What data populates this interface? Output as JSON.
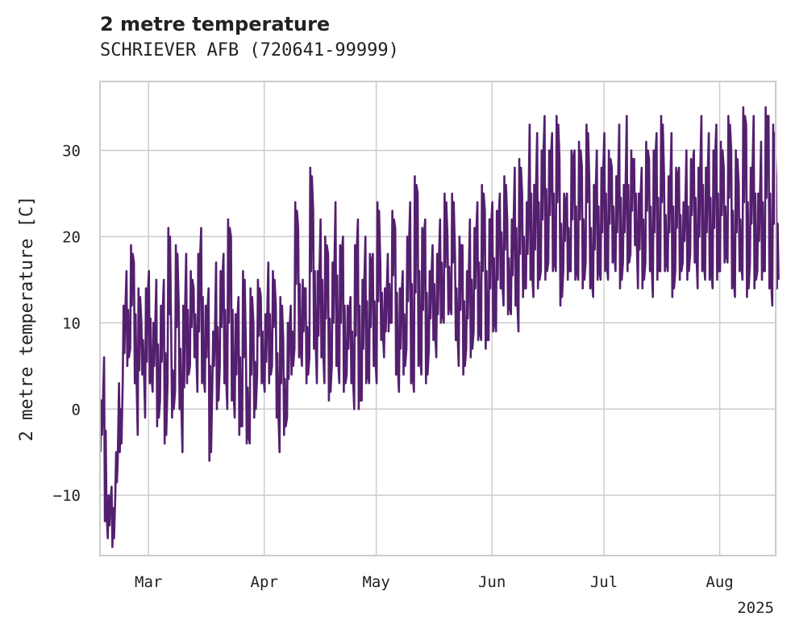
{
  "header": {
    "title": "2 metre temperature",
    "subtitle": "SCHRIEVER AFB (720641-99999)"
  },
  "chart_data": {
    "type": "line",
    "title": "2 metre temperature",
    "subtitle": "SCHRIEVER AFB (720641-99999)",
    "ylabel": "2 metre temperature [C]",
    "xlabel": "",
    "x_range": [
      "2025-02-16",
      "2025-08-16"
    ],
    "ylim": [
      -17,
      38
    ],
    "yticks": [
      -10,
      0,
      10,
      20,
      30
    ],
    "ytick_labels": [
      "−10",
      "0",
      "10",
      "20",
      "30"
    ],
    "xticks": [
      "2025-03-01",
      "2025-04-01",
      "2025-05-01",
      "2025-06-01",
      "2025-07-01",
      "2025-08-01"
    ],
    "xtick_labels": [
      "Mar",
      "Apr",
      "May",
      "Jun",
      "Jul",
      "Aug"
    ],
    "x_offset_label": "2025",
    "grid": true,
    "series": [
      {
        "color": "#541f6e",
        "sampling": "3-hourly readings shown as daily min/max envelope",
        "x": [
          "2025-02-16",
          "2025-02-17",
          "2025-02-18",
          "2025-02-19",
          "2025-02-20",
          "2025-02-21",
          "2025-02-22",
          "2025-02-23",
          "2025-02-24",
          "2025-02-25",
          "2025-02-26",
          "2025-02-27",
          "2025-02-28",
          "2025-03-01",
          "2025-03-02",
          "2025-03-03",
          "2025-03-04",
          "2025-03-05",
          "2025-03-06",
          "2025-03-07",
          "2025-03-08",
          "2025-03-09",
          "2025-03-10",
          "2025-03-11",
          "2025-03-12",
          "2025-03-13",
          "2025-03-14",
          "2025-03-15",
          "2025-03-16",
          "2025-03-17",
          "2025-03-18",
          "2025-03-19",
          "2025-03-20",
          "2025-03-21",
          "2025-03-22",
          "2025-03-23",
          "2025-03-24",
          "2025-03-25",
          "2025-03-26",
          "2025-03-27",
          "2025-03-28",
          "2025-03-29",
          "2025-03-30",
          "2025-03-31",
          "2025-04-01",
          "2025-04-02",
          "2025-04-03",
          "2025-04-04",
          "2025-04-05",
          "2025-04-06",
          "2025-04-07",
          "2025-04-08",
          "2025-04-09",
          "2025-04-10",
          "2025-04-11",
          "2025-04-12",
          "2025-04-13",
          "2025-04-14",
          "2025-04-15",
          "2025-04-16",
          "2025-04-17",
          "2025-04-18",
          "2025-04-19",
          "2025-04-20",
          "2025-04-21",
          "2025-04-22",
          "2025-04-23",
          "2025-04-24",
          "2025-04-25",
          "2025-04-26",
          "2025-04-27",
          "2025-04-28",
          "2025-04-29",
          "2025-04-30",
          "2025-05-01",
          "2025-05-02",
          "2025-05-03",
          "2025-05-04",
          "2025-05-05",
          "2025-05-06",
          "2025-05-07",
          "2025-05-08",
          "2025-05-09",
          "2025-05-10",
          "2025-05-11",
          "2025-05-12",
          "2025-05-13",
          "2025-05-14",
          "2025-05-15",
          "2025-05-16",
          "2025-05-17",
          "2025-05-18",
          "2025-05-19",
          "2025-05-20",
          "2025-05-21",
          "2025-05-22",
          "2025-05-23",
          "2025-05-24",
          "2025-05-25",
          "2025-05-26",
          "2025-05-27",
          "2025-05-28",
          "2025-05-29",
          "2025-05-30",
          "2025-05-31",
          "2025-06-01",
          "2025-06-02",
          "2025-06-03",
          "2025-06-04",
          "2025-06-05",
          "2025-06-06",
          "2025-06-07",
          "2025-06-08",
          "2025-06-09",
          "2025-06-10",
          "2025-06-11",
          "2025-06-12",
          "2025-06-13",
          "2025-06-14",
          "2025-06-15",
          "2025-06-16",
          "2025-06-17",
          "2025-06-18",
          "2025-06-19",
          "2025-06-20",
          "2025-06-21",
          "2025-06-22",
          "2025-06-23",
          "2025-06-24",
          "2025-06-25",
          "2025-06-26",
          "2025-06-27",
          "2025-06-28",
          "2025-06-29",
          "2025-06-30",
          "2025-07-01",
          "2025-07-02",
          "2025-07-03",
          "2025-07-04",
          "2025-07-05",
          "2025-07-06",
          "2025-07-07",
          "2025-07-08",
          "2025-07-09",
          "2025-07-10",
          "2025-07-11",
          "2025-07-12",
          "2025-07-13",
          "2025-07-14",
          "2025-07-15",
          "2025-07-16",
          "2025-07-17",
          "2025-07-18",
          "2025-07-19",
          "2025-07-20",
          "2025-07-21",
          "2025-07-22",
          "2025-07-23",
          "2025-07-24",
          "2025-07-25",
          "2025-07-26",
          "2025-07-27",
          "2025-07-28",
          "2025-07-29",
          "2025-07-30",
          "2025-07-31",
          "2025-08-01",
          "2025-08-02",
          "2025-08-03",
          "2025-08-04",
          "2025-08-05",
          "2025-08-06",
          "2025-08-07",
          "2025-08-08",
          "2025-08-09",
          "2025-08-10",
          "2025-08-11",
          "2025-08-12",
          "2025-08-13",
          "2025-08-14",
          "2025-08-15",
          "2025-08-16"
        ],
        "min": [
          -5,
          -13,
          -15,
          -16,
          -10,
          -5,
          3,
          5,
          7,
          3,
          -3,
          4,
          -1,
          3,
          2,
          -2,
          1,
          -4,
          3,
          -1,
          2,
          0,
          -5,
          3,
          5,
          6,
          2,
          3,
          2,
          -6,
          3,
          0,
          5,
          3,
          0,
          1,
          -1,
          -3,
          -2,
          -4,
          -4,
          -1,
          4,
          3,
          2,
          3,
          5,
          -1,
          -5,
          -3,
          -1,
          4,
          7,
          6,
          5,
          3,
          6,
          7,
          3,
          6,
          3,
          1,
          5,
          5,
          3,
          2,
          4,
          3,
          0,
          0,
          1,
          3,
          3,
          5,
          3,
          8,
          6,
          9,
          10,
          4,
          2,
          4,
          7,
          3,
          2,
          5,
          4,
          3,
          7,
          8,
          6,
          10,
          10,
          11,
          11,
          8,
          5,
          4,
          7,
          6,
          9,
          8,
          8,
          7,
          8,
          9,
          9,
          14,
          12,
          11,
          11,
          12,
          9,
          13,
          14,
          15,
          13,
          14,
          16,
          15,
          17,
          16,
          16,
          12,
          16,
          15,
          16,
          15,
          15,
          14,
          17,
          14,
          13,
          15,
          15,
          16,
          15,
          17,
          16,
          14,
          17,
          16,
          18,
          19,
          14,
          14,
          17,
          16,
          13,
          15,
          16,
          16,
          16,
          13,
          16,
          15,
          17,
          15,
          18,
          17,
          14,
          16,
          15,
          15,
          14,
          15,
          16,
          17,
          17,
          14,
          13,
          16,
          15,
          13,
          17,
          14,
          16,
          15,
          16,
          14,
          12,
          14,
          15,
          14,
          14,
          13,
          14,
          18,
          17
        ],
        "max": [
          1,
          6,
          -10,
          -9,
          -5,
          3,
          12,
          16,
          19,
          17,
          14,
          10,
          14,
          16,
          10,
          15,
          12,
          15,
          21,
          8,
          19,
          12,
          12,
          18,
          16,
          14,
          18,
          21,
          12,
          14,
          9,
          17,
          16,
          18,
          22,
          20,
          11,
          13,
          16,
          7,
          14,
          10,
          15,
          13,
          11,
          17,
          16,
          12,
          13,
          8,
          10,
          12,
          24,
          21,
          15,
          14,
          28,
          23,
          16,
          22,
          20,
          18,
          17,
          24,
          19,
          20,
          12,
          13,
          19,
          22,
          15,
          20,
          18,
          18,
          24,
          17,
          14,
          18,
          23,
          21,
          14,
          16,
          20,
          24,
          27,
          25,
          21,
          22,
          16,
          19,
          18,
          22,
          25,
          20,
          25,
          18,
          20,
          19,
          16,
          22,
          21,
          24,
          26,
          23,
          22,
          24,
          23,
          25,
          27,
          22,
          22,
          28,
          29,
          25,
          24,
          33,
          26,
          32,
          30,
          34,
          30,
          32,
          34,
          29,
          25,
          25,
          30,
          30,
          31,
          28,
          33,
          26,
          26,
          30,
          28,
          32,
          30,
          28,
          27,
          33,
          26,
          34,
          30,
          29,
          25,
          28,
          31,
          29,
          30,
          32,
          34,
          27,
          27,
          32,
          28,
          28,
          24,
          30,
          29,
          30,
          28,
          34,
          28,
          32,
          30,
          33,
          31,
          28,
          34,
          30,
          30,
          26,
          35,
          33,
          28,
          34,
          25,
          31,
          35,
          34,
          33,
          27,
          32,
          24
        ]
      }
    ]
  }
}
